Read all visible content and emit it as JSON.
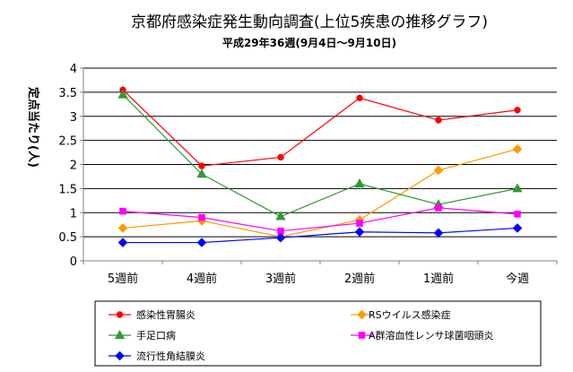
{
  "chart_data": {
    "type": "line",
    "title": "京都府感染症発生動向調査(上位5疾患の推移グラフ)",
    "subtitle": "平成29年36週(9月4日～9月10日)",
    "ylabel": "定点当たり(人)",
    "xlabel": "",
    "categories": [
      "5週前",
      "4週前",
      "3週前",
      "2週前",
      "1週前",
      "今週"
    ],
    "ylim": [
      0,
      4
    ],
    "yticks": [
      "0",
      "0.5",
      "1",
      "1.5",
      "2",
      "2.5",
      "3",
      "3.5",
      "4"
    ],
    "grid": true,
    "legend_position": "bottom",
    "series": [
      {
        "name": "感染性胃腸炎",
        "color": "#ff0000",
        "marker": "circle",
        "values": [
          3.55,
          1.97,
          2.15,
          3.38,
          2.92,
          3.13
        ]
      },
      {
        "name": "RSウイルス感染症",
        "color": "#ff9900",
        "marker": "diamond",
        "values": [
          0.68,
          0.83,
          0.5,
          0.85,
          1.88,
          2.32
        ]
      },
      {
        "name": "手足口病",
        "color": "#339933",
        "marker": "triangle",
        "values": [
          3.45,
          1.8,
          0.92,
          1.6,
          1.17,
          1.5
        ]
      },
      {
        "name": "A群溶血性レンサ球菌咽頭炎",
        "color": "#ff00ff",
        "marker": "square",
        "values": [
          1.03,
          0.9,
          0.62,
          0.78,
          1.1,
          0.97
        ]
      },
      {
        "name": "流行性角結膜炎",
        "color": "#0000ff",
        "marker": "diamond",
        "values": [
          0.38,
          0.38,
          0.48,
          0.6,
          0.58,
          0.68
        ]
      }
    ]
  }
}
